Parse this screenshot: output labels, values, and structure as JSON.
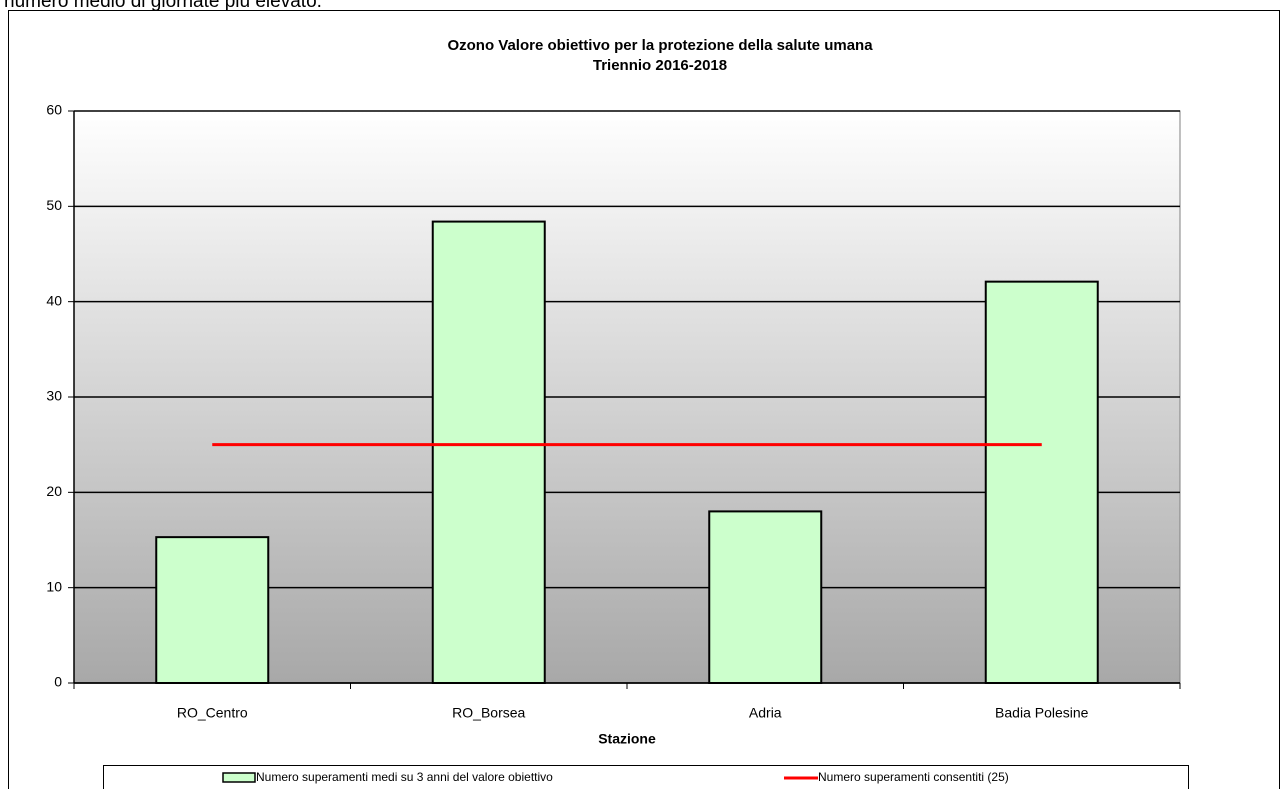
{
  "header_text": "numero medio di giornate più elevato.",
  "chart_data": {
    "type": "bar",
    "title": "Ozono Valore obiettivo per la protezione della salute umana",
    "subtitle": "Triennio 2016-2018",
    "x_label": "Stazione",
    "categories": [
      "RO_Centro",
      "RO_Borsea",
      "Adria",
      "Badia Polesine"
    ],
    "series": [
      {
        "name": "Numero superamenti medi su 3 anni del valore obiettivo",
        "type": "bar",
        "color": "#ccffcc",
        "values": [
          15.3,
          48.4,
          18.0,
          42.1
        ]
      },
      {
        "name": "Numero superamenti consentiti (25)",
        "type": "line",
        "color": "#ff0000",
        "values": [
          25,
          25,
          25,
          25
        ]
      }
    ],
    "ylim": [
      0,
      60
    ],
    "yticks": [
      0,
      10,
      20,
      30,
      40,
      50,
      60
    ],
    "grid": true
  }
}
